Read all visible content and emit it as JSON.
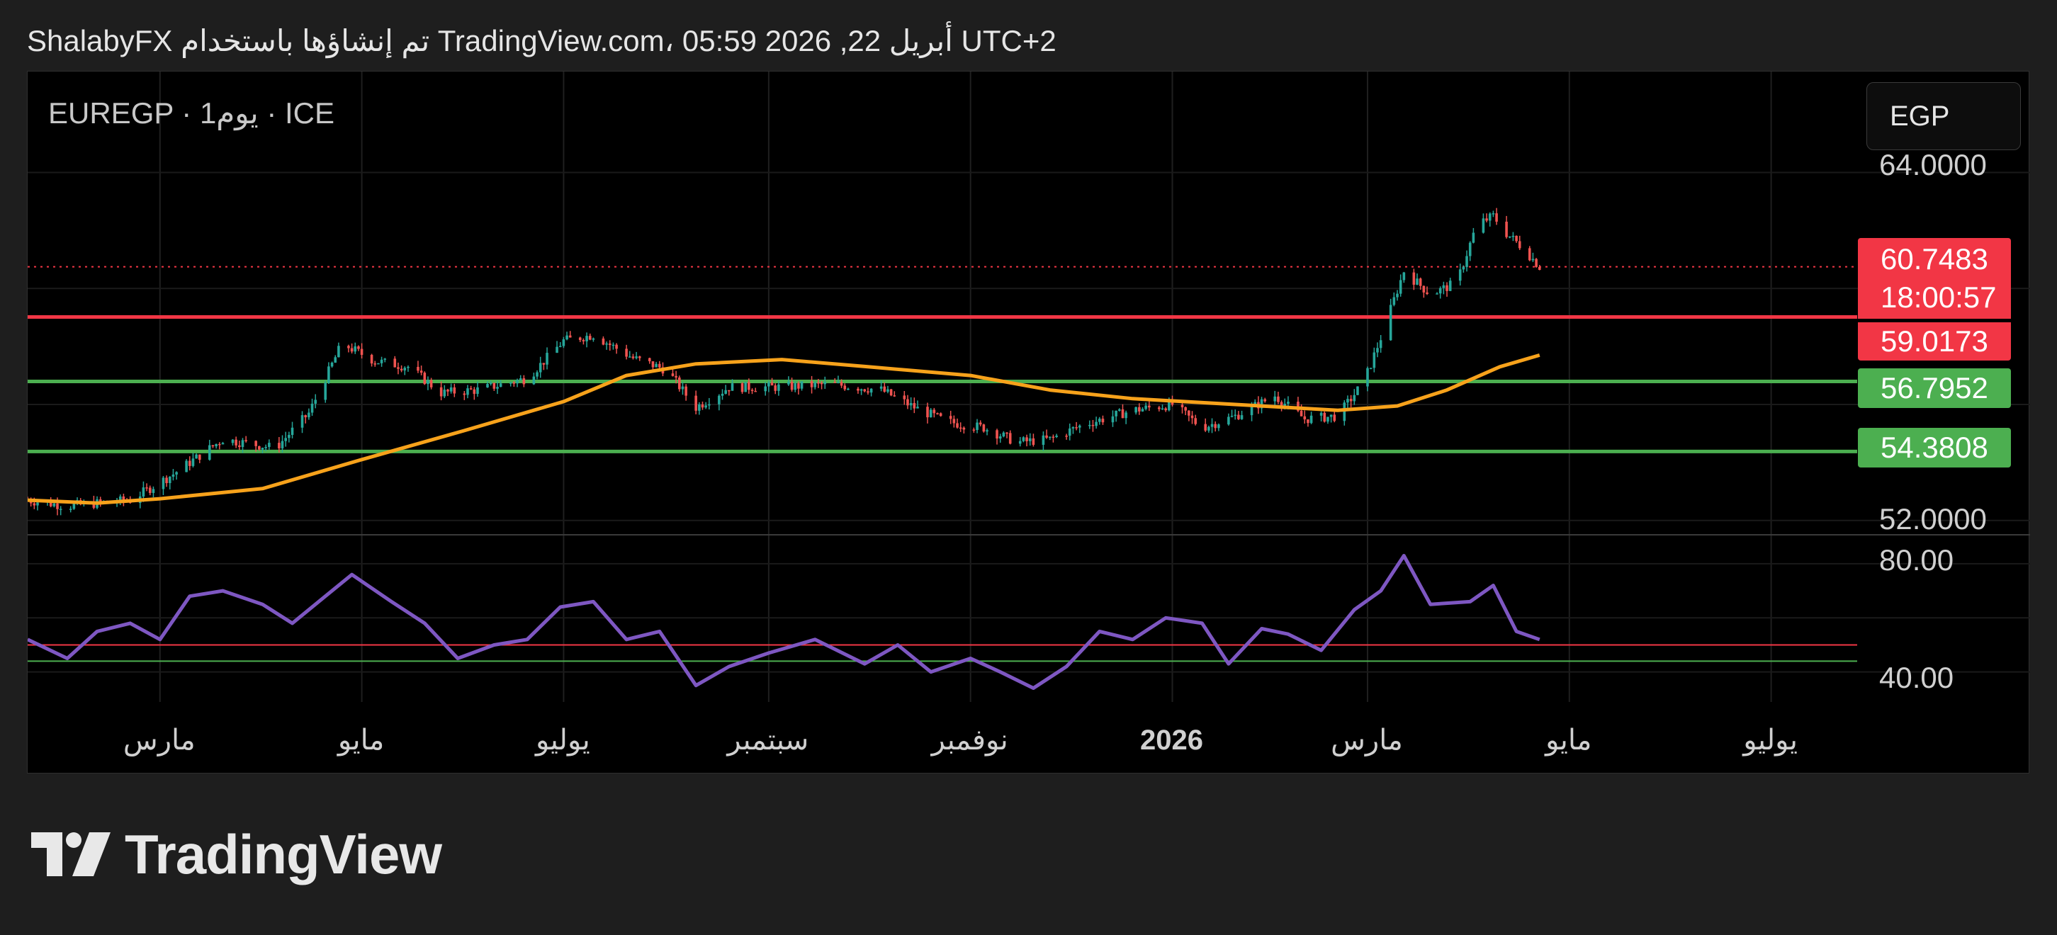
{
  "header": {
    "text": "ShalabyFX تم إنشاؤها باستخدام TradingView.com، 05:59 2026 ,22 أبريل UTC+2"
  },
  "symbol": {
    "text": "EUREGP · 1يوم · ICE"
  },
  "currency": {
    "label": "EGP"
  },
  "price_tags": {
    "last": "60.7483",
    "countdown": "18:00:57",
    "resistance": "59.0173",
    "support_upper": "56.7952",
    "support_lower": "54.3808"
  },
  "price_axis": {
    "labels": [
      "64.0000",
      "52.0000"
    ]
  },
  "rsi_axis": {
    "labels": [
      "80.00",
      "40.00"
    ]
  },
  "time_axis": {
    "labels": [
      "مارس",
      "مايو",
      "يوليو",
      "سبتمبر",
      "نوفمبر",
      "2026",
      "مارس",
      "مايو",
      "يوليو"
    ]
  },
  "logo": {
    "text": "TradingView"
  },
  "colors": {
    "resistance": "#f23645",
    "support": "#4caf50",
    "ma": "#f7a21b",
    "rsi": "#7e57c2",
    "up": "#26a69a",
    "down": "#ef5350"
  },
  "chart_data": [
    {
      "type": "candlestick",
      "title": "EUREGP · 1يوم · ICE",
      "ylim": [
        51.8,
        64.5
      ],
      "x_range": [
        "2025-01-20",
        "2026-07-27"
      ],
      "x_ticks": [
        {
          "date": "2025-03-01",
          "label": "مارس"
        },
        {
          "date": "2025-05-01",
          "label": "مايو"
        },
        {
          "date": "2025-07-01",
          "label": "يوليو"
        },
        {
          "date": "2025-09-01",
          "label": "سبتمبر"
        },
        {
          "date": "2025-11-01",
          "label": "نوفمبر"
        },
        {
          "date": "2026-01-01",
          "label": "2026",
          "bold": true
        },
        {
          "date": "2026-03-01",
          "label": "مارس"
        },
        {
          "date": "2026-05-01",
          "label": "مايو"
        },
        {
          "date": "2026-07-01",
          "label": "يوليو"
        }
      ],
      "horizontal_lines": [
        {
          "value": 59.0173,
          "color": "#f23645",
          "name": "resistance"
        },
        {
          "value": 56.7952,
          "color": "#4caf50",
          "name": "support"
        },
        {
          "value": 54.3808,
          "color": "#4caf50",
          "name": "support"
        }
      ],
      "last_price": 60.7483,
      "close_path": [
        [
          "2025-01-20",
          52.7
        ],
        [
          "2025-02-01",
          52.5
        ],
        [
          "2025-02-20",
          52.7
        ],
        [
          "2025-03-05",
          53.6
        ],
        [
          "2025-03-20",
          54.8
        ],
        [
          "2025-04-05",
          54.5
        ],
        [
          "2025-04-15",
          55.7
        ],
        [
          "2025-04-25",
          58.1
        ],
        [
          "2025-05-05",
          57.5
        ],
        [
          "2025-05-15",
          57.3
        ],
        [
          "2025-05-25",
          56.4
        ],
        [
          "2025-06-05",
          56.5
        ],
        [
          "2025-06-20",
          56.9
        ],
        [
          "2025-07-01",
          58.2
        ],
        [
          "2025-07-10",
          58.4
        ],
        [
          "2025-07-22",
          57.6
        ],
        [
          "2025-08-01",
          57.2
        ],
        [
          "2025-08-10",
          55.9
        ],
        [
          "2025-08-20",
          56.6
        ],
        [
          "2025-09-05",
          56.6
        ],
        [
          "2025-09-20",
          56.7
        ],
        [
          "2025-10-05",
          56.5
        ],
        [
          "2025-10-15",
          55.9
        ],
        [
          "2025-10-25",
          55.4
        ],
        [
          "2025-11-05",
          55.2
        ],
        [
          "2025-11-15",
          54.7
        ],
        [
          "2025-11-25",
          54.8
        ],
        [
          "2025-12-05",
          55.3
        ],
        [
          "2025-12-20",
          55.8
        ],
        [
          "2026-01-01",
          56.0
        ],
        [
          "2026-01-10",
          55.2
        ],
        [
          "2026-01-20",
          55.6
        ],
        [
          "2026-02-01",
          56.3
        ],
        [
          "2026-02-10",
          55.5
        ],
        [
          "2026-02-20",
          55.6
        ],
        [
          "2026-02-28",
          56.8
        ],
        [
          "2026-03-05",
          58.3
        ],
        [
          "2026-03-12",
          60.6
        ],
        [
          "2026-03-20",
          59.8
        ],
        [
          "2026-03-28",
          60.2
        ],
        [
          "2026-04-03",
          62.2
        ],
        [
          "2026-04-08",
          62.5
        ],
        [
          "2026-04-12",
          61.9
        ],
        [
          "2026-04-17",
          61.4
        ],
        [
          "2026-04-22",
          60.75
        ]
      ],
      "moving_average": [
        [
          "2025-01-20",
          52.7
        ],
        [
          "2025-02-10",
          52.6
        ],
        [
          "2025-03-01",
          52.75
        ],
        [
          "2025-04-01",
          53.1
        ],
        [
          "2025-05-01",
          54.1
        ],
        [
          "2025-06-01",
          55.1
        ],
        [
          "2025-07-01",
          56.1
        ],
        [
          "2025-07-20",
          57.0
        ],
        [
          "2025-08-10",
          57.4
        ],
        [
          "2025-09-05",
          57.55
        ],
        [
          "2025-10-01",
          57.3
        ],
        [
          "2025-11-01",
          57.0
        ],
        [
          "2025-11-25",
          56.5
        ],
        [
          "2025-12-20",
          56.2
        ],
        [
          "2026-01-20",
          56.0
        ],
        [
          "2026-02-20",
          55.8
        ],
        [
          "2026-03-10",
          55.95
        ],
        [
          "2026-03-25",
          56.5
        ],
        [
          "2026-04-10",
          57.3
        ],
        [
          "2026-04-22",
          57.7
        ]
      ]
    },
    {
      "type": "line",
      "name": "RSI",
      "ylim": [
        31,
        86
      ],
      "y_ticks": [
        80,
        40
      ],
      "levels": [
        {
          "value": 50,
          "color": "#f23645"
        },
        {
          "value": 44,
          "color": "#4caf50"
        }
      ],
      "x": [
        "2025-01-20",
        "2025-02-01",
        "2025-02-10",
        "2025-02-20",
        "2025-03-01",
        "2025-03-10",
        "2025-03-20",
        "2025-04-01",
        "2025-04-10",
        "2025-04-20",
        "2025-04-28",
        "2025-05-10",
        "2025-05-20",
        "2025-05-30",
        "2025-06-10",
        "2025-06-20",
        "2025-06-30",
        "2025-07-10",
        "2025-07-20",
        "2025-07-30",
        "2025-08-10",
        "2025-08-20",
        "2025-09-01",
        "2025-09-15",
        "2025-09-30",
        "2025-10-10",
        "2025-10-20",
        "2025-11-01",
        "2025-11-10",
        "2025-11-20",
        "2025-11-30",
        "2025-12-10",
        "2025-12-20",
        "2025-12-30",
        "2026-01-10",
        "2026-01-18",
        "2026-01-28",
        "2026-02-05",
        "2026-02-15",
        "2026-02-25",
        "2026-03-05",
        "2026-03-12",
        "2026-03-20",
        "2026-04-01",
        "2026-04-08",
        "2026-04-15",
        "2026-04-22"
      ],
      "y": [
        52,
        45,
        55,
        58,
        52,
        68,
        70,
        65,
        58,
        68,
        76,
        66,
        58,
        45,
        50,
        52,
        64,
        66,
        52,
        55,
        35,
        42,
        47,
        52,
        43,
        50,
        40,
        45,
        40,
        34,
        42,
        55,
        52,
        60,
        58,
        43,
        56,
        54,
        48,
        63,
        70,
        83,
        65,
        66,
        72,
        55,
        52
      ]
    }
  ]
}
